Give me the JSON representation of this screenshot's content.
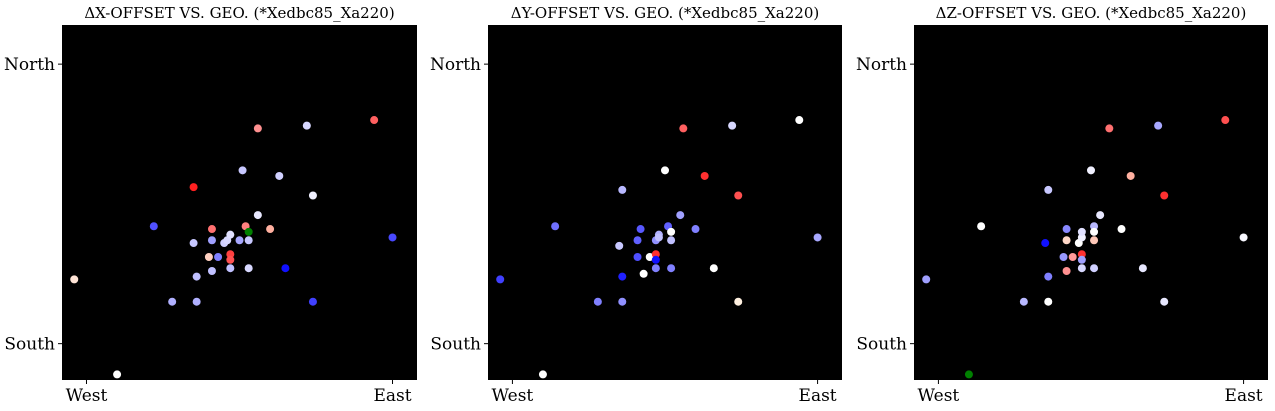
{
  "chart_data": [
    {
      "type": "scatter",
      "title": "ΔX-OFFSET VS. GEO. (*Xedbc85_Xa220)",
      "x_ticks": [
        {
          "value": 0,
          "label": "West"
        },
        {
          "value": 1,
          "label": "East"
        }
      ],
      "y_ticks": [
        {
          "value": 0,
          "label": "South"
        },
        {
          "value": 1,
          "label": "North"
        }
      ],
      "xlim": [
        -0.08,
        1.08
      ],
      "ylim": [
        -0.13,
        1.14
      ],
      "grid": false,
      "background": "#000000",
      "points": [
        {
          "x": -0.04,
          "y": 0.23,
          "color": "#ffe4d6"
        },
        {
          "x": 0.1,
          "y": -0.11,
          "color": "#ffffff"
        },
        {
          "x": 0.22,
          "y": 0.42,
          "color": "#5050ff"
        },
        {
          "x": 0.35,
          "y": 0.56,
          "color": "#ff2020"
        },
        {
          "x": 0.28,
          "y": 0.15,
          "color": "#b0b0ff"
        },
        {
          "x": 0.36,
          "y": 0.15,
          "color": "#b0b0ff"
        },
        {
          "x": 0.36,
          "y": 0.24,
          "color": "#c0c0ff"
        },
        {
          "x": 0.35,
          "y": 0.36,
          "color": "#c8c8ff"
        },
        {
          "x": 0.4,
          "y": 0.31,
          "color": "#ffd0c0"
        },
        {
          "x": 0.41,
          "y": 0.37,
          "color": "#a0a0ff"
        },
        {
          "x": 0.41,
          "y": 0.41,
          "color": "#ff7070"
        },
        {
          "x": 0.41,
          "y": 0.26,
          "color": "#c0c0ff"
        },
        {
          "x": 0.43,
          "y": 0.31,
          "color": "#8080ff"
        },
        {
          "x": 0.45,
          "y": 0.36,
          "color": "#d0d0ff"
        },
        {
          "x": 0.46,
          "y": 0.37,
          "color": "#d8d8ff"
        },
        {
          "x": 0.47,
          "y": 0.39,
          "color": "#e0e0ff"
        },
        {
          "x": 0.47,
          "y": 0.32,
          "color": "#ff4040"
        },
        {
          "x": 0.47,
          "y": 0.3,
          "color": "#ff5050"
        },
        {
          "x": 0.47,
          "y": 0.27,
          "color": "#c0c0ff"
        },
        {
          "x": 0.5,
          "y": 0.37,
          "color": "#a8a8ff"
        },
        {
          "x": 0.51,
          "y": 0.62,
          "color": "#c8c8ff"
        },
        {
          "x": 0.52,
          "y": 0.42,
          "color": "#ff8080"
        },
        {
          "x": 0.53,
          "y": 0.4,
          "color": "#008000"
        },
        {
          "x": 0.53,
          "y": 0.37,
          "color": "#c8c8ff"
        },
        {
          "x": 0.53,
          "y": 0.27,
          "color": "#d8d8ff"
        },
        {
          "x": 0.56,
          "y": 0.46,
          "color": "#e8e8ff"
        },
        {
          "x": 0.56,
          "y": 0.77,
          "color": "#ff9090"
        },
        {
          "x": 0.6,
          "y": 0.41,
          "color": "#ffb0a0"
        },
        {
          "x": 0.63,
          "y": 0.6,
          "color": "#d0d0ff"
        },
        {
          "x": 0.65,
          "y": 0.27,
          "color": "#1010ff"
        },
        {
          "x": 0.72,
          "y": 0.78,
          "color": "#d8d8ff"
        },
        {
          "x": 0.74,
          "y": 0.53,
          "color": "#f0f0ff"
        },
        {
          "x": 0.74,
          "y": 0.15,
          "color": "#4040ff"
        },
        {
          "x": 0.94,
          "y": 0.8,
          "color": "#ff6060"
        },
        {
          "x": 1.0,
          "y": 0.38,
          "color": "#4848ff"
        }
      ]
    },
    {
      "type": "scatter",
      "title": "ΔY-OFFSET VS. GEO. (*Xedbc85_Xa220)",
      "x_ticks": [
        {
          "value": 0,
          "label": "West"
        },
        {
          "value": 1,
          "label": "East"
        }
      ],
      "y_ticks": [
        {
          "value": 0,
          "label": "South"
        },
        {
          "value": 1,
          "label": "North"
        }
      ],
      "xlim": [
        -0.08,
        1.08
      ],
      "ylim": [
        -0.13,
        1.14
      ],
      "grid": false,
      "background": "#000000",
      "points": [
        {
          "x": -0.04,
          "y": 0.23,
          "color": "#4040ff"
        },
        {
          "x": 0.1,
          "y": -0.11,
          "color": "#ffffff"
        },
        {
          "x": 0.14,
          "y": 0.42,
          "color": "#7070ff"
        },
        {
          "x": 0.28,
          "y": 0.15,
          "color": "#8080ff"
        },
        {
          "x": 0.36,
          "y": 0.15,
          "color": "#9090ff"
        },
        {
          "x": 0.36,
          "y": 0.24,
          "color": "#2020ff"
        },
        {
          "x": 0.36,
          "y": 0.55,
          "color": "#b8b8ff"
        },
        {
          "x": 0.35,
          "y": 0.35,
          "color": "#c8c8ff"
        },
        {
          "x": 0.41,
          "y": 0.31,
          "color": "#5050ff"
        },
        {
          "x": 0.41,
          "y": 0.37,
          "color": "#6060ff"
        },
        {
          "x": 0.42,
          "y": 0.41,
          "color": "#5858ff"
        },
        {
          "x": 0.43,
          "y": 0.25,
          "color": "#ffffff"
        },
        {
          "x": 0.45,
          "y": 0.31,
          "color": "#ffffff"
        },
        {
          "x": 0.47,
          "y": 0.37,
          "color": "#9090ff"
        },
        {
          "x": 0.48,
          "y": 0.39,
          "color": "#b0b0ff"
        },
        {
          "x": 0.47,
          "y": 0.32,
          "color": "#ff3030"
        },
        {
          "x": 0.47,
          "y": 0.3,
          "color": "#1010ff"
        },
        {
          "x": 0.47,
          "y": 0.27,
          "color": "#8080ff"
        },
        {
          "x": 0.48,
          "y": 0.38,
          "color": "#c0c0ff"
        },
        {
          "x": 0.5,
          "y": 0.62,
          "color": "#ffffff"
        },
        {
          "x": 0.51,
          "y": 0.42,
          "color": "#6060ff"
        },
        {
          "x": 0.52,
          "y": 0.4,
          "color": "#ffffff"
        },
        {
          "x": 0.52,
          "y": 0.37,
          "color": "#c0c0ff"
        },
        {
          "x": 0.52,
          "y": 0.27,
          "color": "#8080ff"
        },
        {
          "x": 0.55,
          "y": 0.46,
          "color": "#a0a0ff"
        },
        {
          "x": 0.56,
          "y": 0.77,
          "color": "#ff6060"
        },
        {
          "x": 0.6,
          "y": 0.41,
          "color": "#8080ff"
        },
        {
          "x": 0.63,
          "y": 0.6,
          "color": "#ff3030"
        },
        {
          "x": 0.66,
          "y": 0.27,
          "color": "#ffffff"
        },
        {
          "x": 0.72,
          "y": 0.78,
          "color": "#d8d8ff"
        },
        {
          "x": 0.74,
          "y": 0.53,
          "color": "#ff5050"
        },
        {
          "x": 0.74,
          "y": 0.15,
          "color": "#fff0e0"
        },
        {
          "x": 0.94,
          "y": 0.8,
          "color": "#ffffff"
        },
        {
          "x": 1.0,
          "y": 0.38,
          "color": "#a8a8ff"
        }
      ]
    },
    {
      "type": "scatter",
      "title": "ΔZ-OFFSET VS. GEO. (*Xedbc85_Xa220)",
      "x_ticks": [
        {
          "value": 0,
          "label": "West"
        },
        {
          "value": 1,
          "label": "East"
        }
      ],
      "y_ticks": [
        {
          "value": 0,
          "label": "South"
        },
        {
          "value": 1,
          "label": "North"
        }
      ],
      "xlim": [
        -0.08,
        1.08
      ],
      "ylim": [
        -0.13,
        1.14
      ],
      "grid": false,
      "background": "#000000",
      "points": [
        {
          "x": -0.04,
          "y": 0.23,
          "color": "#a0a0ff"
        },
        {
          "x": 0.1,
          "y": -0.11,
          "color": "#008000"
        },
        {
          "x": 0.14,
          "y": 0.42,
          "color": "#ffffff"
        },
        {
          "x": 0.28,
          "y": 0.15,
          "color": "#b8b8ff"
        },
        {
          "x": 0.36,
          "y": 0.15,
          "color": "#ffffff"
        },
        {
          "x": 0.36,
          "y": 0.24,
          "color": "#8080ff"
        },
        {
          "x": 0.36,
          "y": 0.55,
          "color": "#c8c8ff"
        },
        {
          "x": 0.35,
          "y": 0.36,
          "color": "#1010ff"
        },
        {
          "x": 0.41,
          "y": 0.31,
          "color": "#9898ff"
        },
        {
          "x": 0.42,
          "y": 0.41,
          "color": "#8888ff"
        },
        {
          "x": 0.42,
          "y": 0.37,
          "color": "#ffd8c8"
        },
        {
          "x": 0.42,
          "y": 0.26,
          "color": "#ff9090"
        },
        {
          "x": 0.44,
          "y": 0.31,
          "color": "#ff9898"
        },
        {
          "x": 0.46,
          "y": 0.36,
          "color": "#ffffff"
        },
        {
          "x": 0.47,
          "y": 0.38,
          "color": "#f0f0ff"
        },
        {
          "x": 0.47,
          "y": 0.4,
          "color": "#e0e0ff"
        },
        {
          "x": 0.47,
          "y": 0.32,
          "color": "#ff3030"
        },
        {
          "x": 0.47,
          "y": 0.3,
          "color": "#a0a0ff"
        },
        {
          "x": 0.47,
          "y": 0.27,
          "color": "#d8d8ff"
        },
        {
          "x": 0.5,
          "y": 0.62,
          "color": "#f0f0ff"
        },
        {
          "x": 0.51,
          "y": 0.42,
          "color": "#b8b8ff"
        },
        {
          "x": 0.51,
          "y": 0.4,
          "color": "#ffffff"
        },
        {
          "x": 0.51,
          "y": 0.37,
          "color": "#ffc8b8"
        },
        {
          "x": 0.51,
          "y": 0.27,
          "color": "#d0d0ff"
        },
        {
          "x": 0.53,
          "y": 0.46,
          "color": "#e8e8ff"
        },
        {
          "x": 0.56,
          "y": 0.77,
          "color": "#ff7070"
        },
        {
          "x": 0.6,
          "y": 0.41,
          "color": "#ffffff"
        },
        {
          "x": 0.63,
          "y": 0.6,
          "color": "#ffb0a0"
        },
        {
          "x": 0.67,
          "y": 0.27,
          "color": "#e8e8ff"
        },
        {
          "x": 0.72,
          "y": 0.78,
          "color": "#a8a8ff"
        },
        {
          "x": 0.74,
          "y": 0.53,
          "color": "#ff3030"
        },
        {
          "x": 0.74,
          "y": 0.15,
          "color": "#e8e8ff"
        },
        {
          "x": 0.94,
          "y": 0.8,
          "color": "#ff5050"
        },
        {
          "x": 1.0,
          "y": 0.38,
          "color": "#f8f8ff"
        }
      ]
    }
  ]
}
